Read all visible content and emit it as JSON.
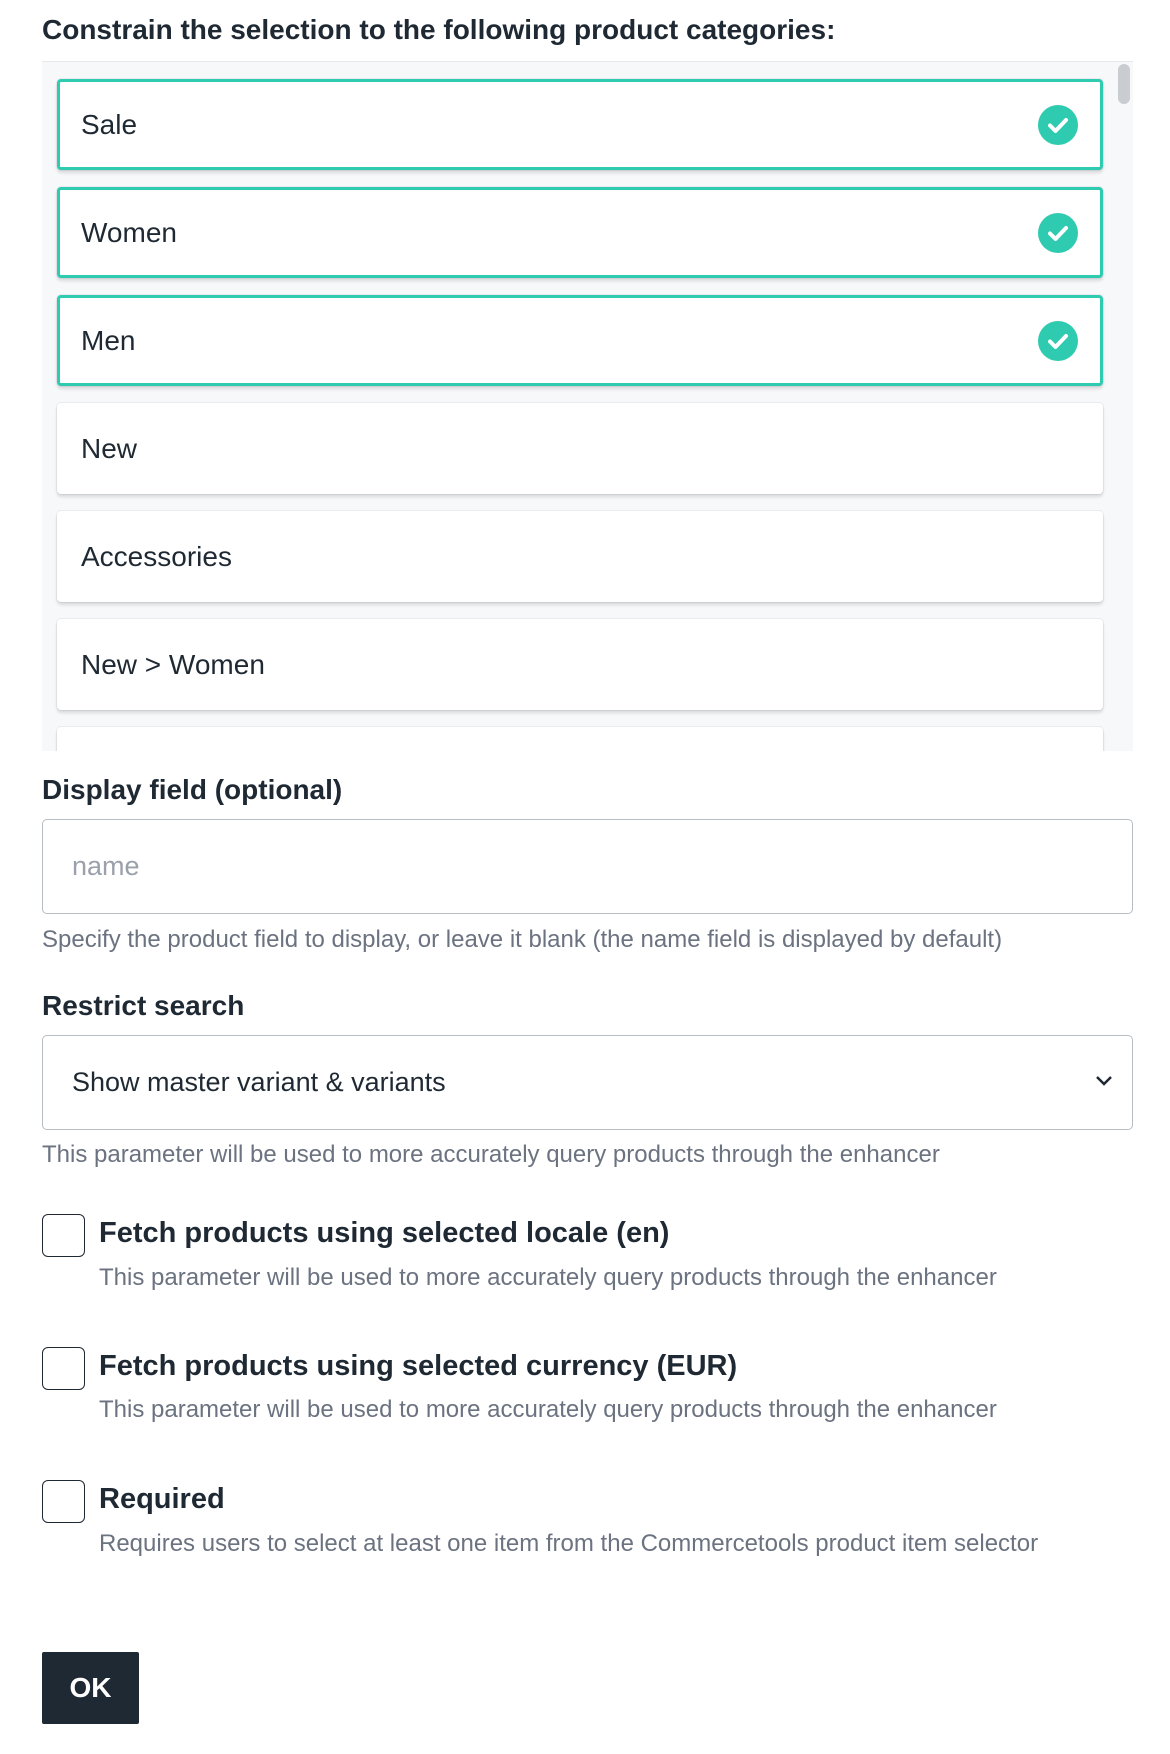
{
  "categories": {
    "title": "Constrain the selection to the following product categories:",
    "items": [
      {
        "label": "Sale",
        "selected": true
      },
      {
        "label": "Women",
        "selected": true
      },
      {
        "label": "Men",
        "selected": true
      },
      {
        "label": "New",
        "selected": false
      },
      {
        "label": "Accessories",
        "selected": false
      },
      {
        "label": "New > Women",
        "selected": false
      }
    ],
    "accent_color": "#2fcbb0"
  },
  "display_field": {
    "label": "Display field (optional)",
    "value": "",
    "placeholder": "name",
    "help": "Specify the product field to display, or leave it blank (the name field is displayed by default)"
  },
  "restrict_search": {
    "label": "Restrict search",
    "selected": "Show master variant & variants",
    "help": "This parameter will be used to more accurately query products through the enhancer"
  },
  "options": [
    {
      "label": "Fetch products using selected locale (en)",
      "description": "This parameter will be used to more accurately query products through the enhancer",
      "checked": false
    },
    {
      "label": "Fetch products using selected currency (EUR)",
      "description": "This parameter will be used to more accurately query products through the enhancer",
      "checked": false
    },
    {
      "label": "Required",
      "description": "Requires users to select at least one item from the Commercetools product item selector",
      "checked": false
    }
  ],
  "ok_label": "OK"
}
